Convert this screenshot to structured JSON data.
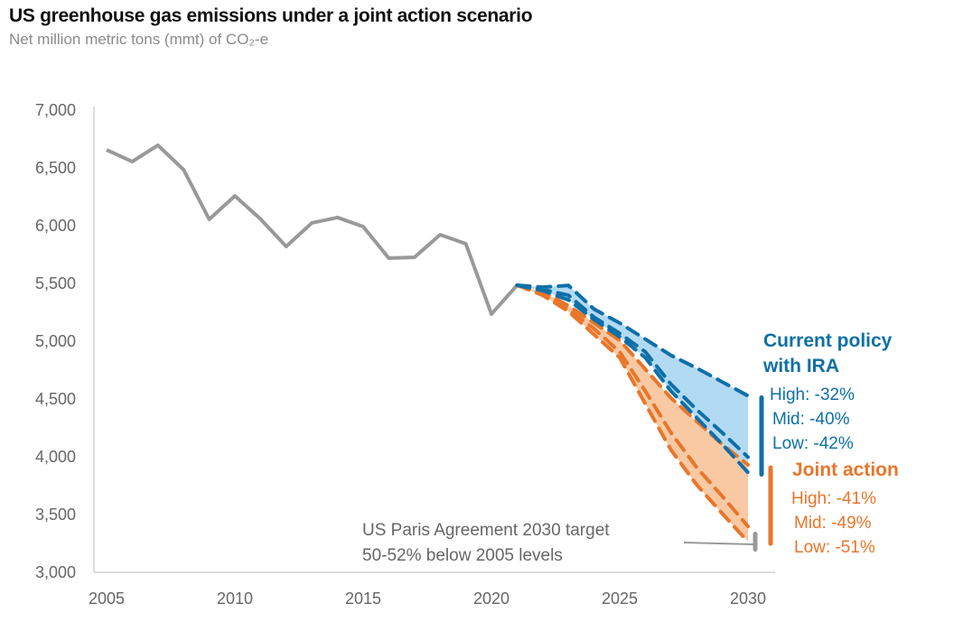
{
  "title": "US greenhouse gas emissions under a joint action scenario",
  "subtitle": "Net million metric tons (mmt) of CO₂-e",
  "colors": {
    "history": "#999999",
    "current_policy": "#0e70a8",
    "current_policy_fill": "#b3daf3",
    "joint_action": "#e8762b",
    "joint_action_fill": "#f8c9a3",
    "target": "#999999"
  },
  "chart_data": {
    "type": "line",
    "title": "US greenhouse gas emissions under a joint action scenario",
    "ylabel": "",
    "xlabel": "",
    "ylim": [
      3000,
      7000
    ],
    "xlim": [
      2005,
      2030
    ],
    "y_ticks": [
      "3,000",
      "3,500",
      "4,000",
      "4,500",
      "5,000",
      "5,500",
      "6,000",
      "6,500",
      "7,000"
    ],
    "y_tick_values": [
      3000,
      3500,
      4000,
      4500,
      5000,
      5500,
      6000,
      6500,
      7000
    ],
    "x_ticks": [
      "2005",
      "2010",
      "2015",
      "2020",
      "2025",
      "2030"
    ],
    "x_tick_values": [
      2005,
      2010,
      2015,
      2020,
      2025,
      2030
    ],
    "grid": false,
    "history": {
      "x": [
        2005,
        2006,
        2007,
        2008,
        2009,
        2010,
        2011,
        2012,
        2013,
        2014,
        2015,
        2016,
        2017,
        2018,
        2019,
        2020,
        2021
      ],
      "y": [
        6648,
        6547,
        6688,
        6477,
        6047,
        6250,
        6050,
        5812,
        6016,
        6063,
        5984,
        5711,
        5719,
        5914,
        5836,
        5227,
        5477
      ]
    },
    "projection_x": [
      2021,
      2022,
      2023,
      2024,
      2025,
      2026,
      2027,
      2028,
      2029,
      2030
    ],
    "current_policy": {
      "label_line1": "Current policy",
      "label_line2": "with IRA",
      "high": [
        5477,
        5460,
        5475,
        5270,
        5150,
        5010,
        4870,
        4760,
        4640,
        4520
      ],
      "mid": [
        5477,
        5440,
        5390,
        5200,
        5060,
        4900,
        4620,
        4400,
        4200,
        3989
      ],
      "low": [
        5477,
        5430,
        5350,
        5180,
        5030,
        4850,
        4560,
        4330,
        4100,
        3856
      ],
      "labels": [
        "High: -32%",
        "Mid: -40%",
        "Low: -42%"
      ]
    },
    "joint_action": {
      "label": "Joint action",
      "high": [
        5477,
        5420,
        5300,
        5150,
        5000,
        4750,
        4500,
        4300,
        4100,
        3922
      ],
      "mid": [
        5477,
        5400,
        5270,
        5100,
        4900,
        4560,
        4200,
        3900,
        3650,
        3390
      ],
      "low": [
        5477,
        5390,
        5250,
        5050,
        4850,
        4450,
        4050,
        3750,
        3500,
        3257
      ],
      "labels": [
        "High: -41%",
        "Mid: -49%",
        "Low: -51%"
      ]
    },
    "target": {
      "line1": "US Paris Agreement 2030 target",
      "line2": "50-52% below 2005 levels",
      "range": [
        3191,
        3324
      ]
    }
  }
}
